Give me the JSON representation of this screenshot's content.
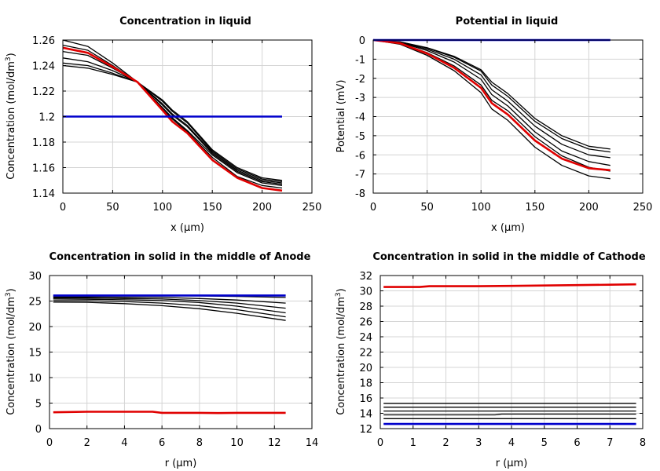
{
  "chart_data": [
    {
      "type": "line",
      "title": "Concentration in liquid",
      "xlabel": "x (µm)",
      "ylabel": "Concentration (mol/dm",
      "ylabel_sup": "3",
      "ylabel_end": ")",
      "xlim": [
        0,
        250
      ],
      "ylim": [
        1.14,
        1.26
      ],
      "xticks": [
        0,
        50,
        100,
        150,
        200,
        250
      ],
      "xtick_labels": [
        "0",
        "50",
        "100",
        "150",
        "200",
        "250"
      ],
      "yticks": [
        1.14,
        1.16,
        1.18,
        1.2,
        1.22,
        1.24,
        1.26
      ],
      "ytick_labels": [
        "1.14",
        "1.16",
        "1.18",
        "1.2",
        "1.22",
        "1.24",
        "1.26"
      ],
      "grid": true,
      "series": [
        {
          "name": "black-1",
          "color": "#000000",
          "x": [
            0,
            25,
            50,
            75,
            100,
            110,
            125,
            150,
            175,
            200,
            220
          ],
          "y": [
            1.26,
            1.255,
            1.242,
            1.227,
            1.207,
            1.199,
            1.189,
            1.17,
            1.156,
            1.148,
            1.146
          ]
        },
        {
          "name": "black-2",
          "color": "#000000",
          "x": [
            0,
            25,
            50,
            75,
            100,
            110,
            125,
            150,
            175,
            200,
            220
          ],
          "y": [
            1.256,
            1.252,
            1.24,
            1.227,
            1.206,
            1.198,
            1.188,
            1.168,
            1.153,
            1.146,
            1.144
          ]
        },
        {
          "name": "black-3",
          "color": "#000000",
          "x": [
            0,
            25,
            50,
            75,
            100,
            110,
            125,
            150,
            175,
            200,
            220
          ],
          "y": [
            1.251,
            1.248,
            1.238,
            1.227,
            1.209,
            1.201,
            1.192,
            1.171,
            1.157,
            1.149,
            1.147
          ]
        },
        {
          "name": "black-4",
          "color": "#000000",
          "x": [
            0,
            25,
            50,
            75,
            100,
            110,
            125,
            150,
            175,
            200,
            220
          ],
          "y": [
            1.246,
            1.243,
            1.236,
            1.227,
            1.21,
            1.202,
            1.193,
            1.172,
            1.158,
            1.15,
            1.148
          ]
        },
        {
          "name": "black-5",
          "color": "#000000",
          "x": [
            0,
            25,
            50,
            75,
            100,
            110,
            125,
            150,
            175,
            200,
            220
          ],
          "y": [
            1.242,
            1.24,
            1.234,
            1.227,
            1.212,
            1.204,
            1.195,
            1.173,
            1.159,
            1.151,
            1.149
          ]
        },
        {
          "name": "black-6",
          "color": "#000000",
          "x": [
            0,
            25,
            50,
            75,
            100,
            110,
            125,
            150,
            175,
            200,
            220
          ],
          "y": [
            1.24,
            1.238,
            1.233,
            1.227,
            1.213,
            1.205,
            1.196,
            1.174,
            1.16,
            1.152,
            1.15
          ]
        },
        {
          "name": "red",
          "color": "#e00000",
          "x": [
            0,
            25,
            50,
            75,
            100,
            110,
            125,
            150,
            175,
            200,
            220
          ],
          "y": [
            1.254,
            1.25,
            1.239,
            1.227,
            1.205,
            1.196,
            1.187,
            1.166,
            1.152,
            1.144,
            1.142
          ]
        },
        {
          "name": "blue",
          "color": "#0000cc",
          "x": [
            0,
            220
          ],
          "y": [
            1.2,
            1.2
          ]
        }
      ]
    },
    {
      "type": "line",
      "title": "Potential in liquid",
      "xlabel": "x (µm)",
      "ylabel": "Potential (mV)",
      "ylabel_sup": "",
      "ylabel_end": "",
      "xlim": [
        0,
        250
      ],
      "ylim": [
        -8,
        0
      ],
      "xticks": [
        0,
        50,
        100,
        150,
        200,
        250
      ],
      "xtick_labels": [
        "0",
        "50",
        "100",
        "150",
        "200",
        "250"
      ],
      "yticks": [
        -8,
        -7,
        -6,
        -5,
        -4,
        -3,
        -2,
        -1,
        0
      ],
      "ytick_labels": [
        "-8",
        "-7",
        "-6",
        "-5",
        "-4",
        "-3",
        "-2",
        "-1",
        "0"
      ],
      "grid": true,
      "series": [
        {
          "name": "black-1",
          "color": "#000000",
          "x": [
            0,
            25,
            50,
            75,
            100,
            110,
            125,
            150,
            175,
            200,
            220
          ],
          "y": [
            0,
            -0.1,
            -0.4,
            -0.85,
            -1.55,
            -2.2,
            -2.8,
            -4.1,
            -5.0,
            -5.55,
            -5.7
          ]
        },
        {
          "name": "black-2",
          "color": "#000000",
          "x": [
            0,
            25,
            50,
            75,
            100,
            110,
            125,
            150,
            175,
            200,
            220
          ],
          "y": [
            0,
            -0.1,
            -0.42,
            -0.9,
            -1.62,
            -2.35,
            -2.95,
            -4.25,
            -5.15,
            -5.7,
            -5.85
          ]
        },
        {
          "name": "black-3",
          "color": "#000000",
          "x": [
            0,
            25,
            50,
            75,
            100,
            110,
            125,
            150,
            175,
            200,
            220
          ],
          "y": [
            0,
            -0.12,
            -0.48,
            -1.0,
            -1.82,
            -2.6,
            -3.2,
            -4.5,
            -5.45,
            -6.0,
            -6.15
          ]
        },
        {
          "name": "black-4",
          "color": "#000000",
          "x": [
            0,
            25,
            50,
            75,
            100,
            110,
            125,
            150,
            175,
            200,
            220
          ],
          "y": [
            0,
            -0.14,
            -0.55,
            -1.15,
            -2.05,
            -2.85,
            -3.45,
            -4.8,
            -5.8,
            -6.35,
            -6.55
          ]
        },
        {
          "name": "black-5",
          "color": "#000000",
          "x": [
            0,
            25,
            50,
            75,
            100,
            110,
            125,
            150,
            175,
            200,
            220
          ],
          "y": [
            0,
            -0.17,
            -0.66,
            -1.35,
            -2.35,
            -3.15,
            -3.7,
            -5.05,
            -6.05,
            -6.65,
            -6.85
          ]
        },
        {
          "name": "black-6",
          "color": "#000000",
          "x": [
            0,
            25,
            50,
            75,
            100,
            110,
            125,
            150,
            175,
            200,
            220
          ],
          "y": [
            0,
            -0.22,
            -0.8,
            -1.6,
            -2.75,
            -3.6,
            -4.2,
            -5.6,
            -6.55,
            -7.1,
            -7.25
          ]
        },
        {
          "name": "red",
          "color": "#e00000",
          "x": [
            0,
            25,
            50,
            75,
            100,
            110,
            125,
            150,
            175,
            200,
            220
          ],
          "y": [
            0,
            -0.17,
            -0.7,
            -1.45,
            -2.5,
            -3.3,
            -3.9,
            -5.25,
            -6.2,
            -6.7,
            -6.8
          ]
        },
        {
          "name": "blue",
          "color": "#0000cc",
          "x": [
            0,
            220
          ],
          "y": [
            0,
            0
          ]
        }
      ]
    },
    {
      "type": "line",
      "title": "Concentration in solid in the middle of Anode",
      "xlabel": "r (µm)",
      "ylabel": "Concentration (mol/dm",
      "ylabel_sup": "3",
      "ylabel_end": ")",
      "xlim": [
        0,
        14
      ],
      "ylim": [
        0,
        30
      ],
      "xticks": [
        0,
        2,
        4,
        6,
        8,
        10,
        12,
        14
      ],
      "xtick_labels": [
        "0",
        "2",
        "4",
        "6",
        "8",
        "10",
        "12",
        "14"
      ],
      "yticks": [
        0,
        5,
        10,
        15,
        20,
        25,
        30
      ],
      "ytick_labels": [
        "0",
        "5",
        "10",
        "15",
        "20",
        "25",
        "30"
      ],
      "grid": true,
      "series": [
        {
          "name": "black-1",
          "color": "#000000",
          "x": [
            0.2,
            2,
            4,
            6,
            8,
            10,
            12.6
          ],
          "y": [
            26.0,
            26.0,
            26.0,
            26.0,
            26.0,
            25.9,
            25.7
          ]
        },
        {
          "name": "black-2",
          "color": "#000000",
          "x": [
            0.2,
            2,
            4,
            6,
            8,
            10,
            12.6
          ],
          "y": [
            25.8,
            25.8,
            25.75,
            25.7,
            25.5,
            25.2,
            24.6
          ]
        },
        {
          "name": "black-3",
          "color": "#000000",
          "x": [
            0.2,
            2,
            4,
            6,
            8,
            10,
            12.6
          ],
          "y": [
            25.6,
            25.6,
            25.5,
            25.4,
            25.1,
            24.6,
            23.6
          ]
        },
        {
          "name": "black-4",
          "color": "#000000",
          "x": [
            0.2,
            2,
            4,
            6,
            8,
            10,
            12.6
          ],
          "y": [
            25.4,
            25.35,
            25.25,
            25.1,
            24.7,
            24.0,
            22.7
          ]
        },
        {
          "name": "black-5",
          "color": "#000000",
          "x": [
            0.2,
            2,
            4,
            6,
            8,
            10,
            12.6
          ],
          "y": [
            25.1,
            25.05,
            24.9,
            24.6,
            24.1,
            23.3,
            21.9
          ]
        },
        {
          "name": "black-6",
          "color": "#000000",
          "x": [
            0.2,
            2,
            4,
            6,
            8,
            10,
            12.6
          ],
          "y": [
            24.8,
            24.75,
            24.5,
            24.1,
            23.5,
            22.6,
            21.2
          ]
        },
        {
          "name": "red",
          "color": "#e00000",
          "x": [
            0.2,
            2,
            4,
            5.5,
            6,
            8,
            9,
            10,
            12.6
          ],
          "y": [
            3.2,
            3.3,
            3.3,
            3.3,
            3.1,
            3.1,
            3.05,
            3.1,
            3.1
          ]
        },
        {
          "name": "blue",
          "color": "#0000cc",
          "x": [
            0.2,
            12.6
          ],
          "y": [
            26.1,
            26.1
          ]
        }
      ]
    },
    {
      "type": "line",
      "title": "Concentration in solid in the middle of Cathode",
      "xlabel": "r (µm)",
      "ylabel": "Concentration (mol/dm",
      "ylabel_sup": "3",
      "ylabel_end": ")",
      "xlim": [
        0,
        8
      ],
      "ylim": [
        12,
        32
      ],
      "xticks": [
        0,
        1,
        2,
        3,
        4,
        5,
        6,
        7,
        8
      ],
      "xtick_labels": [
        "0",
        "1",
        "2",
        "3",
        "4",
        "5",
        "6",
        "7",
        "8"
      ],
      "yticks": [
        12,
        14,
        16,
        18,
        20,
        22,
        24,
        26,
        28,
        30,
        32
      ],
      "ytick_labels": [
        "12",
        "14",
        "16",
        "18",
        "20",
        "22",
        "24",
        "26",
        "28",
        "30",
        "32"
      ],
      "grid": true,
      "series": [
        {
          "name": "black-1",
          "color": "#000000",
          "x": [
            0.1,
            7.8
          ],
          "y": [
            15.3,
            15.3
          ]
        },
        {
          "name": "black-2",
          "color": "#000000",
          "x": [
            0.1,
            7.8
          ],
          "y": [
            14.8,
            14.8
          ]
        },
        {
          "name": "black-3",
          "color": "#000000",
          "x": [
            0.1,
            7.8
          ],
          "y": [
            14.3,
            14.3
          ]
        },
        {
          "name": "black-4",
          "color": "#000000",
          "x": [
            0.1,
            3.5,
            3.7,
            7.8
          ],
          "y": [
            13.8,
            13.8,
            13.9,
            13.9
          ]
        },
        {
          "name": "black-5",
          "color": "#000000",
          "x": [
            0.1,
            7.8
          ],
          "y": [
            13.3,
            13.3
          ]
        },
        {
          "name": "red",
          "color": "#e00000",
          "x": [
            0.1,
            1.2,
            1.5,
            3,
            4,
            5,
            6,
            7,
            7.8
          ],
          "y": [
            30.5,
            30.5,
            30.6,
            30.6,
            30.65,
            30.7,
            30.75,
            30.8,
            30.85
          ]
        },
        {
          "name": "blue",
          "color": "#0000cc",
          "x": [
            0.1,
            7.8
          ],
          "y": [
            12.6,
            12.6
          ]
        }
      ]
    }
  ]
}
